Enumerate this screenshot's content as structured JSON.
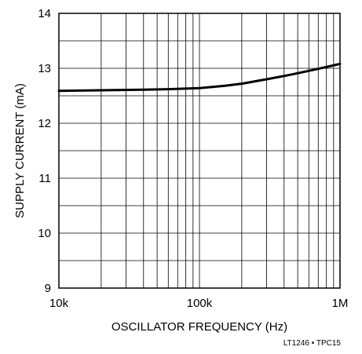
{
  "chart_data": {
    "type": "line",
    "title": "",
    "xlabel": "OSCILLATOR FREQUENCY (Hz)",
    "ylabel": "SUPPLY CURRENT (mA)",
    "x_scale": "log",
    "xlim": [
      10000,
      1000000
    ],
    "ylim": [
      9,
      14
    ],
    "x_ticks": [
      {
        "value": 10000,
        "label": "10k"
      },
      {
        "value": 100000,
        "label": "100k"
      },
      {
        "value": 1000000,
        "label": "1M"
      }
    ],
    "y_ticks": [
      {
        "value": 9,
        "label": "9"
      },
      {
        "value": 10,
        "label": "10"
      },
      {
        "value": 11,
        "label": "11"
      },
      {
        "value": 12,
        "label": "12"
      },
      {
        "value": 13,
        "label": "13"
      },
      {
        "value": 14,
        "label": "14"
      }
    ],
    "y_minor_step": 0.5,
    "grid": true,
    "series": [
      {
        "x": [
          10000,
          20000,
          40000,
          60000,
          100000,
          150000,
          200000,
          300000,
          400000,
          500000,
          700000,
          1000000
        ],
        "y": [
          12.59,
          12.6,
          12.61,
          12.62,
          12.64,
          12.68,
          12.72,
          12.8,
          12.86,
          12.91,
          12.99,
          13.08
        ]
      }
    ],
    "figure_code": "LT1246 • TPC15"
  }
}
